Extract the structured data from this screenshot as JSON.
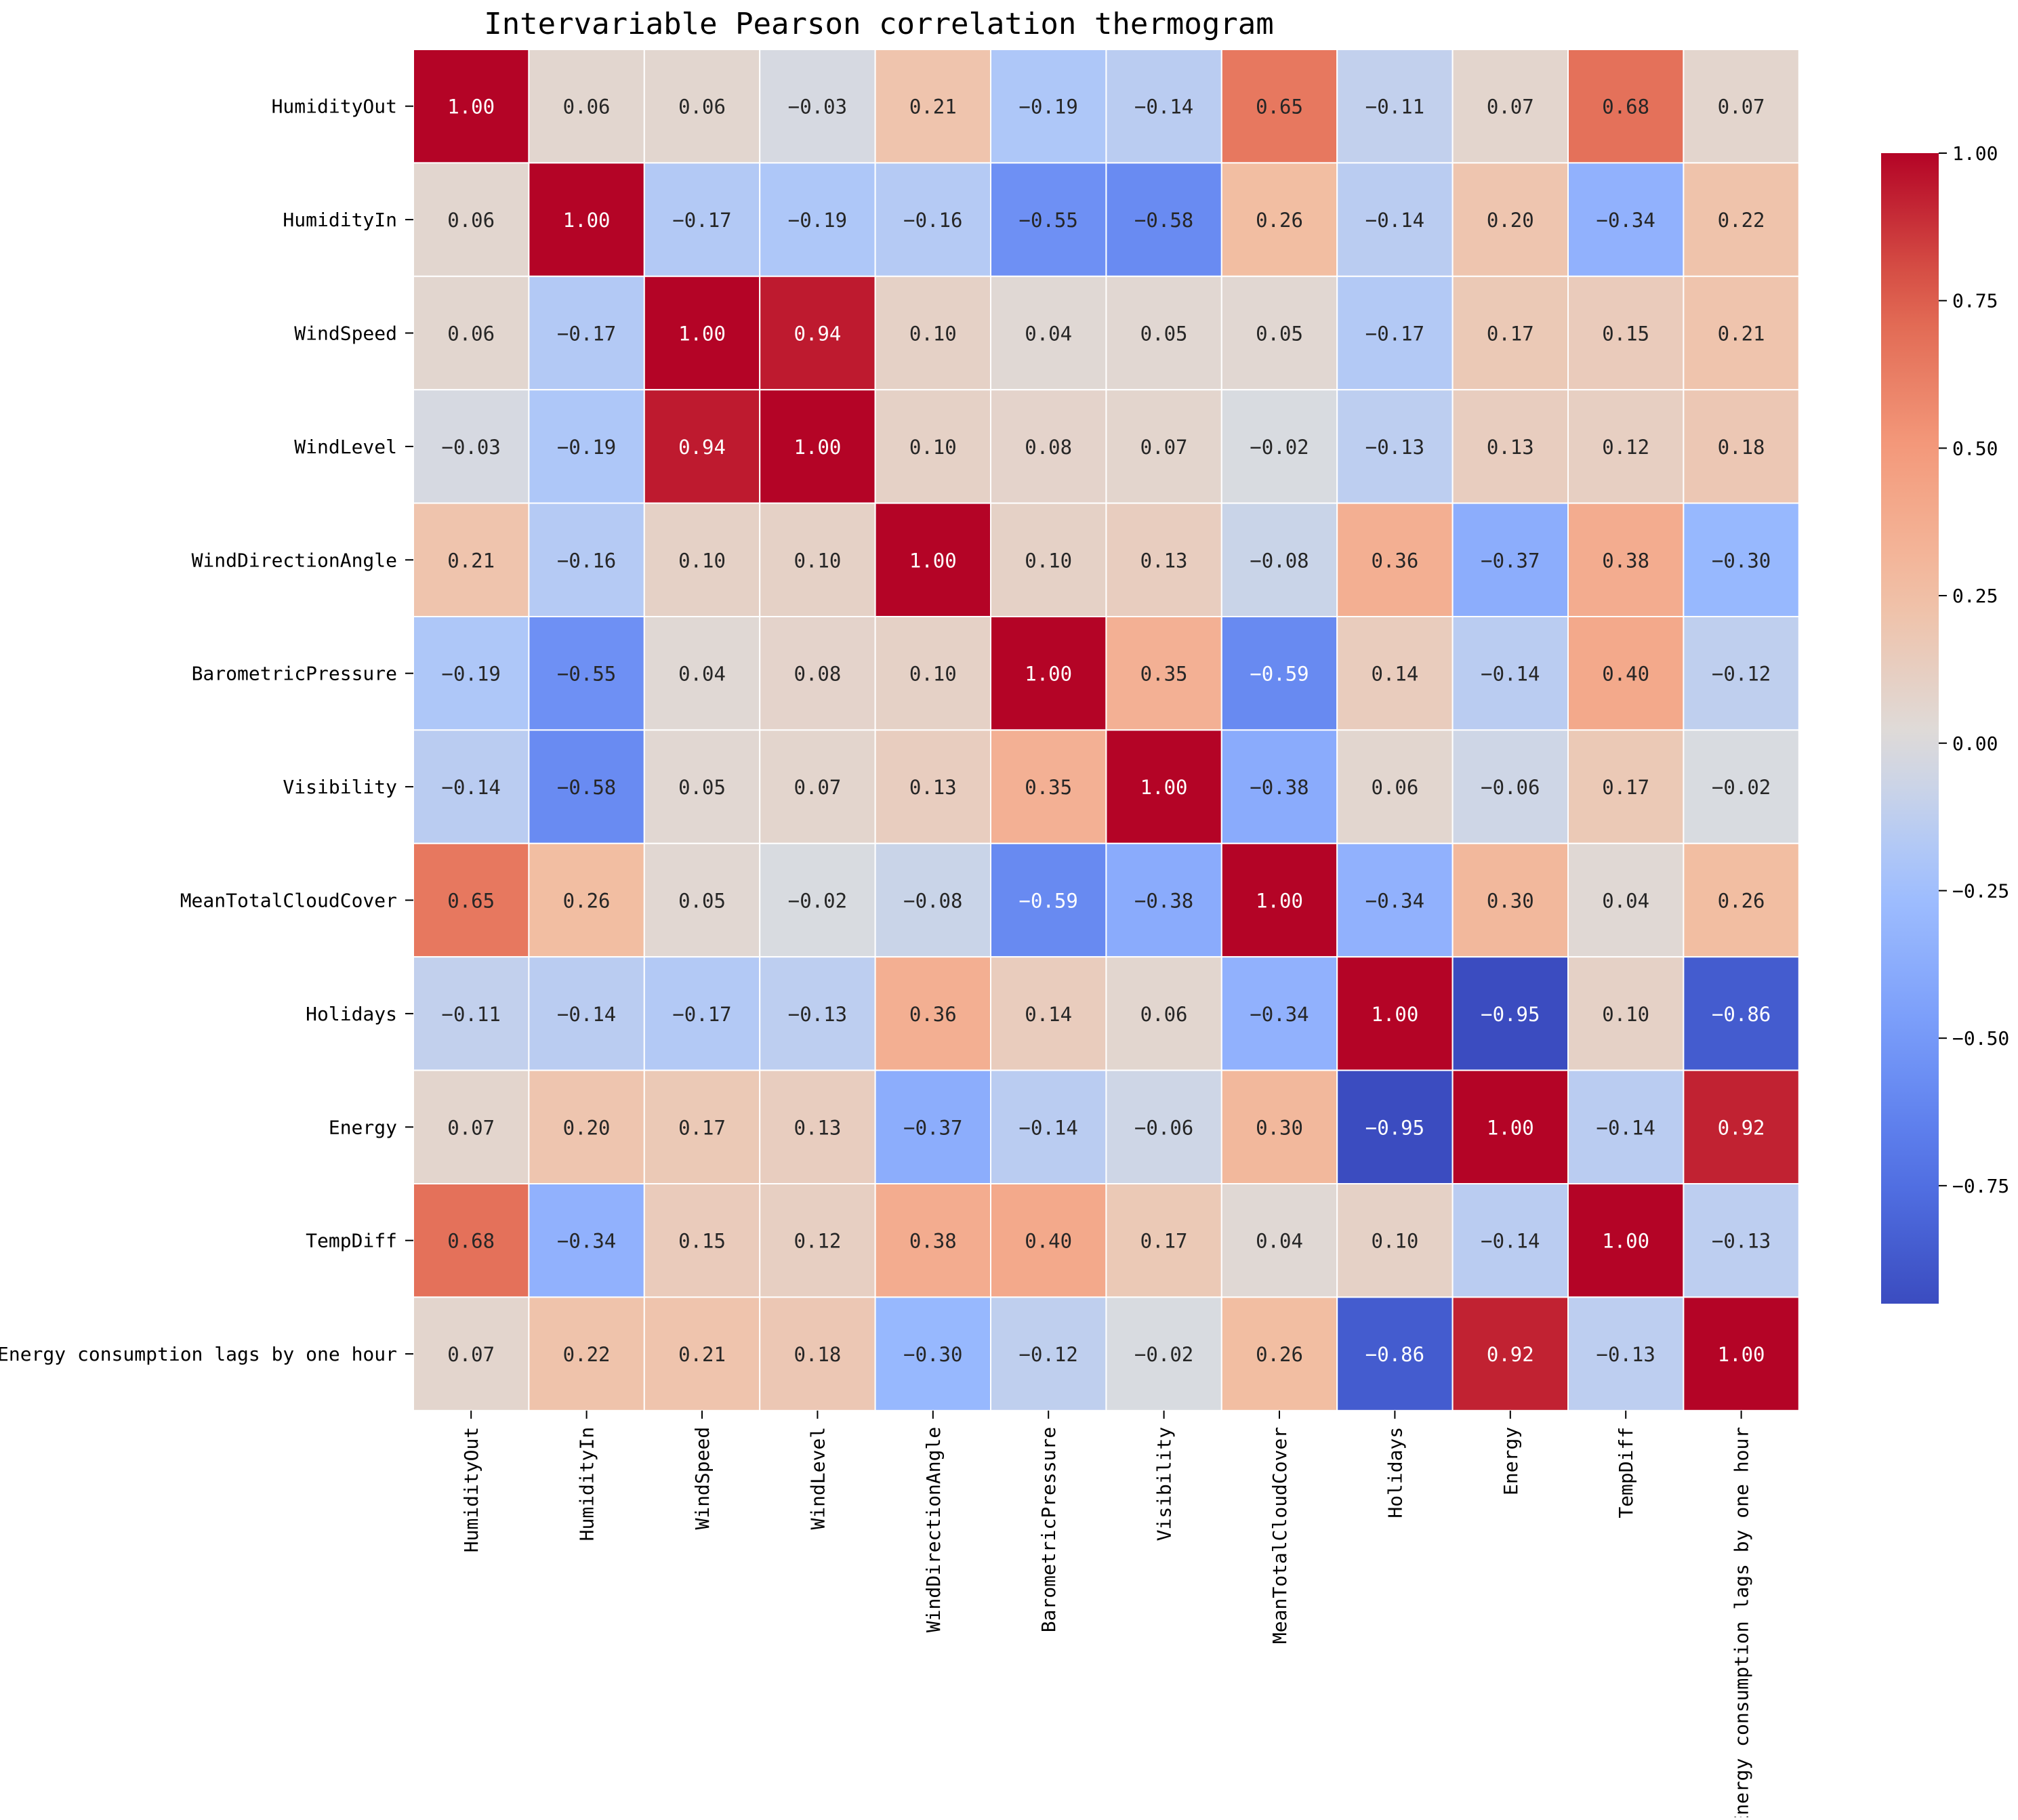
{
  "chart_data": {
    "type": "heatmap",
    "title": "Intervariable Pearson correlation thermogram",
    "xlabel": "",
    "ylabel": "",
    "variables": [
      "HumidityOut",
      "HumidityIn",
      "WindSpeed",
      "WindLevel",
      "WindDirectionAngle",
      "BarometricPressure",
      "Visibility",
      "MeanTotalCloudCover",
      "Holidays",
      "Energy",
      "TempDiff",
      "Energy consumption lags by one hour"
    ],
    "matrix": [
      [
        1.0,
        0.06,
        0.06,
        -0.03,
        0.21,
        -0.19,
        -0.14,
        0.65,
        -0.11,
        0.07,
        0.68,
        0.07
      ],
      [
        0.06,
        1.0,
        -0.17,
        -0.19,
        -0.16,
        -0.55,
        -0.58,
        0.26,
        -0.14,
        0.2,
        -0.34,
        0.22
      ],
      [
        0.06,
        -0.17,
        1.0,
        0.94,
        0.1,
        0.04,
        0.05,
        0.05,
        -0.17,
        0.17,
        0.15,
        0.21
      ],
      [
        -0.03,
        -0.19,
        0.94,
        1.0,
        0.1,
        0.08,
        0.07,
        -0.02,
        -0.13,
        0.13,
        0.12,
        0.18
      ],
      [
        0.21,
        -0.16,
        0.1,
        0.1,
        1.0,
        0.1,
        0.13,
        -0.08,
        0.36,
        -0.37,
        0.38,
        -0.3
      ],
      [
        -0.19,
        -0.55,
        0.04,
        0.08,
        0.1,
        1.0,
        0.35,
        -0.59,
        0.14,
        -0.14,
        0.4,
        -0.12
      ],
      [
        -0.14,
        -0.58,
        0.05,
        0.07,
        0.13,
        0.35,
        1.0,
        -0.38,
        0.06,
        -0.06,
        0.17,
        -0.02
      ],
      [
        0.65,
        0.26,
        0.05,
        -0.02,
        -0.08,
        -0.59,
        -0.38,
        1.0,
        -0.34,
        0.3,
        0.04,
        0.26
      ],
      [
        -0.11,
        -0.14,
        -0.17,
        -0.13,
        0.36,
        0.14,
        0.06,
        -0.34,
        1.0,
        -0.95,
        0.1,
        -0.86
      ],
      [
        0.07,
        0.2,
        0.17,
        0.13,
        -0.37,
        -0.14,
        -0.06,
        0.3,
        -0.95,
        1.0,
        -0.14,
        0.92
      ],
      [
        0.68,
        -0.34,
        0.15,
        0.12,
        0.38,
        0.4,
        0.17,
        0.04,
        0.1,
        -0.14,
        1.0,
        -0.13
      ],
      [
        0.07,
        0.22,
        0.21,
        0.18,
        -0.3,
        -0.12,
        -0.02,
        0.26,
        -0.86,
        0.92,
        -0.13,
        1.0
      ]
    ],
    "value_format": "2 decimals",
    "colormap": "coolwarm",
    "vmin": -0.95,
    "vmax": 1.0,
    "colorbar": {
      "ticks": [
        1.0,
        0.75,
        0.5,
        0.25,
        0.0,
        -0.25,
        -0.5,
        -0.75
      ],
      "tick_labels": [
        "1.00",
        "0.75",
        "0.50",
        "0.25",
        "0.00",
        "−0.25",
        "−0.50",
        "−0.75"
      ],
      "placement": "right"
    },
    "grid": "white cell borders",
    "legend": "none"
  }
}
